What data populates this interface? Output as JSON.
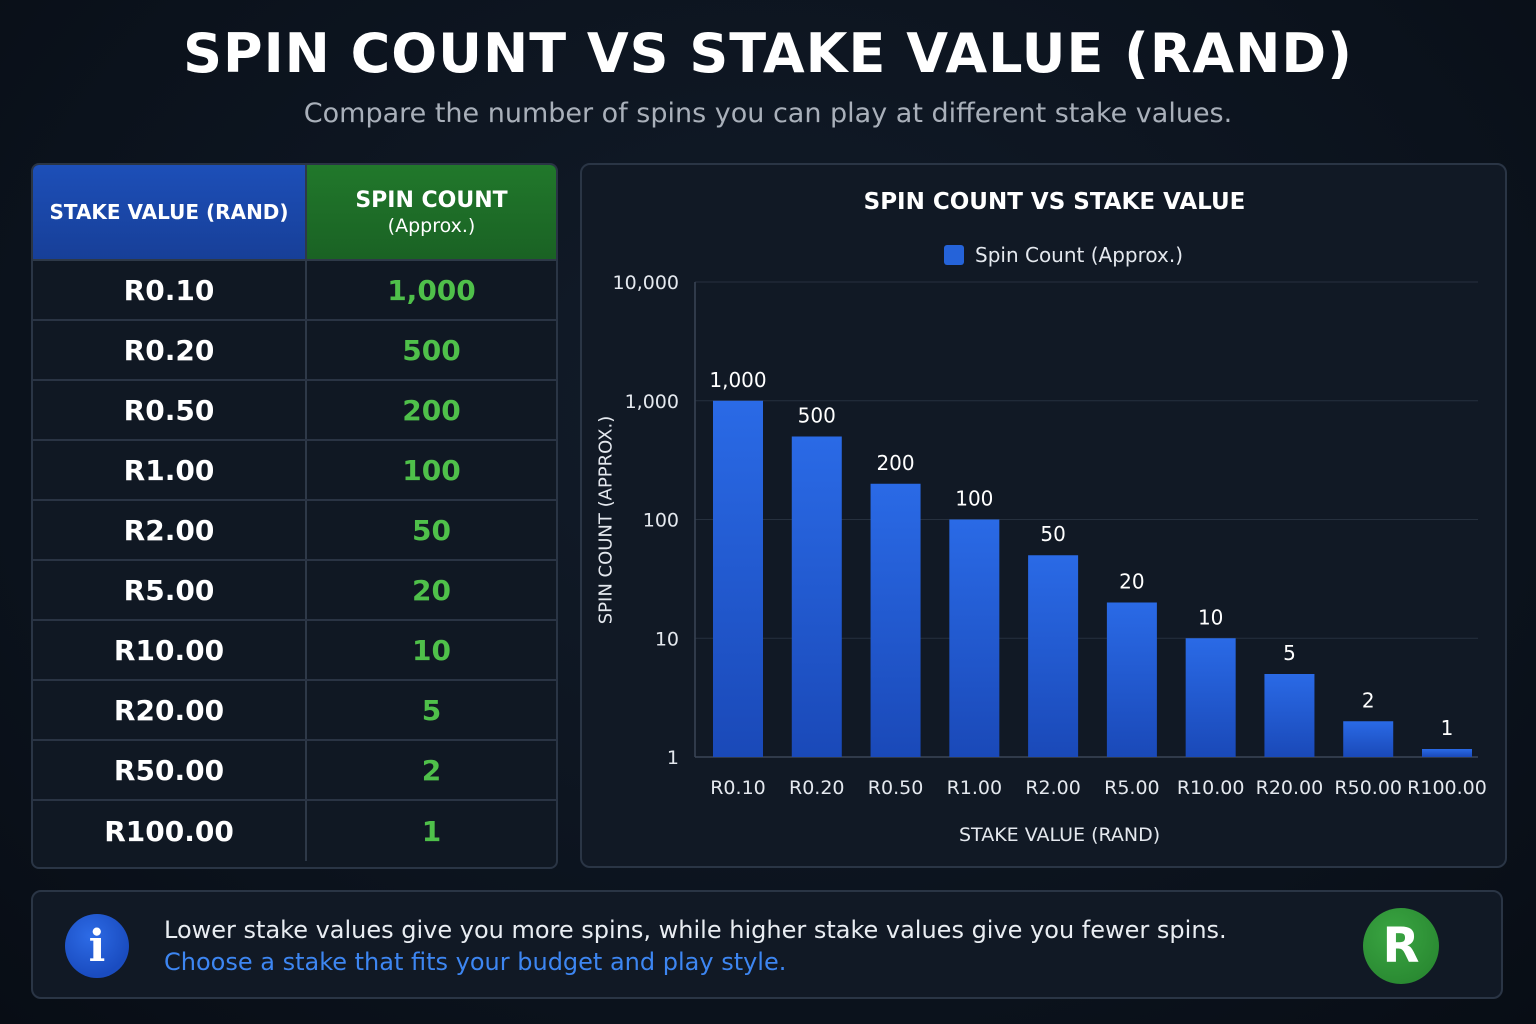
{
  "header": {
    "title": "SPIN COUNT VS STAKE VALUE (RAND)",
    "subtitle": "Compare the number of spins you can play at different stake values."
  },
  "table": {
    "col_stake": "STAKE VALUE (RAND)",
    "col_spin": "SPIN COUNT",
    "col_spin_sub": "(Approx.)",
    "rows": [
      {
        "stake": "R0.10",
        "spins": "1,000"
      },
      {
        "stake": "R0.20",
        "spins": "500"
      },
      {
        "stake": "R0.50",
        "spins": "200"
      },
      {
        "stake": "R1.00",
        "spins": "100"
      },
      {
        "stake": "R2.00",
        "spins": "50"
      },
      {
        "stake": "R5.00",
        "spins": "20"
      },
      {
        "stake": "R10.00",
        "spins": "10"
      },
      {
        "stake": "R20.00",
        "spins": "5"
      },
      {
        "stake": "R50.00",
        "spins": "2"
      },
      {
        "stake": "R100.00",
        "spins": "1"
      }
    ]
  },
  "chart_data": {
    "type": "bar",
    "title": "SPIN COUNT VS STAKE VALUE",
    "xlabel": "STAKE VALUE (RAND)",
    "ylabel": "SPIN COUNT (APPROX.)",
    "yscale": "log",
    "ylim": [
      1,
      10000
    ],
    "yticks": [
      1,
      10,
      100,
      1000,
      10000
    ],
    "ytick_labels": [
      "1",
      "10",
      "100",
      "1,000",
      "10,000"
    ],
    "categories": [
      "R0.10",
      "R0.20",
      "R0.50",
      "R1.00",
      "R2.00",
      "R5.00",
      "R10.00",
      "R20.00",
      "R50.00",
      "R100.00"
    ],
    "series": [
      {
        "name": "Spin Count (Approx.)",
        "values": [
          1000,
          500,
          200,
          100,
          50,
          20,
          10,
          5,
          2,
          1
        ],
        "labels": [
          "1,000",
          "500",
          "200",
          "100",
          "50",
          "20",
          "10",
          "5",
          "2",
          "1"
        ]
      }
    ],
    "grid": true,
    "legend": "top-center",
    "bar_color": "#2563d9"
  },
  "info": {
    "line1": "Lower stake values give you more spins, while higher stake values give you fewer spins.",
    "line2": "Choose a stake that fits your budget and play style.",
    "info_icon_glyph": "i",
    "badge_letter": "R",
    "icon": "info-icon",
    "badge_icon": "rand-currency-icon"
  }
}
